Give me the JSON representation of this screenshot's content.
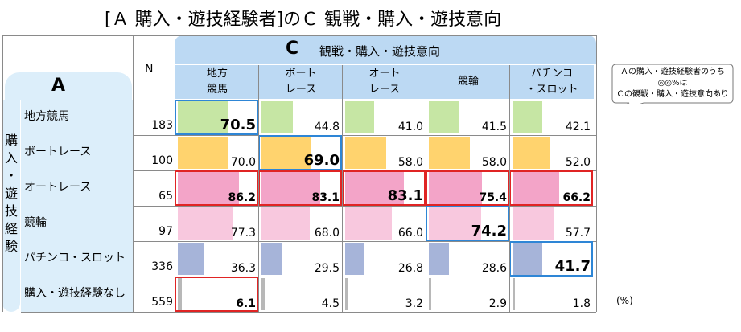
{
  "title": "[Ａ 購入・遊技経験者]のＣ 観戦・購入・遊技意向",
  "c_header": {
    "label": "C",
    "sub": "観戦・購入・遊技意向"
  },
  "a_header": {
    "label": "A"
  },
  "n_header": "N",
  "vertical_label": "購入・遊技経験",
  "unit": "(%)",
  "callout": "Ａの購入・遊技経験者のうち\n◎◎%は\nＣの観戦・購入・遊技意向あり",
  "colors": {
    "header_blue": "#bcd9f3",
    "row_blue": "#dceefa",
    "bar_green": "#c6e6a4",
    "bar_yellow": "#ffd36e",
    "bar_pink_dark": "#f3a4c8",
    "bar_pink_light": "#f8c8de",
    "bar_blue": "#a6b4d9",
    "bar_gray": "#b8b8b8",
    "hl_blue": "#2e86d6",
    "hl_red": "#e02424"
  },
  "chart_data": {
    "type": "table",
    "columns": [
      "地方\n競馬",
      "ボート\nレース",
      "オート\nレース",
      "競輪",
      "パチンコ\n・スロット"
    ],
    "rows": [
      {
        "label": "地方競馬",
        "n": 183,
        "values": [
          70.5,
          44.8,
          41.0,
          41.5,
          42.1
        ],
        "color": "bar_green",
        "bold": [
          0
        ],
        "big": [
          0
        ],
        "hl_cells": [
          0
        ],
        "hl_row": null
      },
      {
        "label": "ボートレース",
        "n": 100,
        "values": [
          70.0,
          69.0,
          58.0,
          58.0,
          52.0
        ],
        "color": "bar_yellow",
        "bold": [
          1
        ],
        "big": [
          1
        ],
        "hl_cells": [
          1
        ],
        "hl_row": null
      },
      {
        "label": "オートレース",
        "n": 65,
        "values": [
          86.2,
          83.1,
          83.1,
          75.4,
          66.2
        ],
        "color": "bar_pink_dark",
        "bold": [
          0,
          1,
          2,
          3,
          4
        ],
        "big": [
          2
        ],
        "hl_cells": [
          2
        ],
        "hl_row": "red"
      },
      {
        "label": "競輪",
        "n": 97,
        "values": [
          77.3,
          68.0,
          66.0,
          74.2,
          57.7
        ],
        "color": "bar_pink_light",
        "bold": [
          3
        ],
        "big": [
          3
        ],
        "hl_cells": [
          3
        ],
        "hl_row": null
      },
      {
        "label": "パチンコ・スロット",
        "n": 336,
        "values": [
          36.3,
          29.5,
          26.8,
          28.6,
          41.7
        ],
        "color": "bar_blue",
        "bold": [
          4
        ],
        "big": [
          4
        ],
        "hl_cells": [
          4
        ],
        "hl_row": null
      },
      {
        "label": "購入・遊技経験なし",
        "n": 559,
        "values": [
          6.1,
          4.5,
          3.2,
          2.9,
          1.8
        ],
        "color": "bar_gray",
        "bold": [
          0
        ],
        "big": [],
        "hl_cells": [],
        "hl_row": null,
        "red_cells": [
          0
        ]
      }
    ],
    "scale_max": 100
  }
}
